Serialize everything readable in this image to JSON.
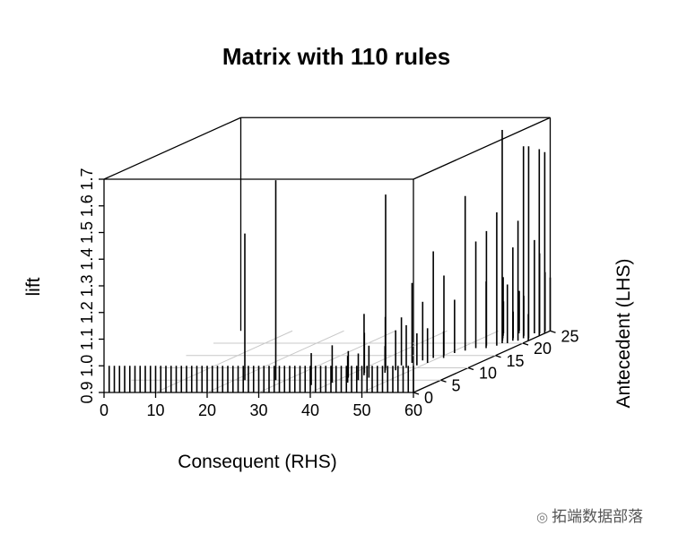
{
  "chart_data": {
    "type": "3d-bar",
    "title": "Matrix with 110 rules",
    "xlabel": "Consequent (RHS)",
    "ylabel": "Antecedent (LHS)",
    "zlabel": "lift",
    "xlim": [
      0,
      60
    ],
    "ylim": [
      0,
      25
    ],
    "zlim": [
      0.9,
      1.7
    ],
    "xticks": [
      "0",
      "10",
      "20",
      "30",
      "40",
      "50",
      "60"
    ],
    "yticks": [
      "0",
      "5",
      "10",
      "15",
      "20",
      "25"
    ],
    "zticks": [
      "0.9",
      "1.0",
      "1.1",
      "1.2",
      "1.3",
      "1.4",
      "1.5",
      "1.6",
      "1.7"
    ],
    "points_note_series": [
      {
        "x": 1,
        "y": 0,
        "z": 1.0
      },
      {
        "x": 2,
        "y": 0,
        "z": 1.0
      },
      {
        "x": 3,
        "y": 0,
        "z": 1.0
      },
      {
        "x": 4,
        "y": 0,
        "z": 1.0
      },
      {
        "x": 5,
        "y": 0,
        "z": 1.0
      },
      {
        "x": 6,
        "y": 0,
        "z": 1.0
      },
      {
        "x": 7,
        "y": 0,
        "z": 1.0
      },
      {
        "x": 8,
        "y": 0,
        "z": 1.0
      },
      {
        "x": 9,
        "y": 0,
        "z": 1.0
      },
      {
        "x": 10,
        "y": 0,
        "z": 1.0
      },
      {
        "x": 11,
        "y": 0,
        "z": 1.0
      },
      {
        "x": 12,
        "y": 0,
        "z": 1.0
      },
      {
        "x": 13,
        "y": 0,
        "z": 1.0
      },
      {
        "x": 14,
        "y": 0,
        "z": 1.0
      },
      {
        "x": 15,
        "y": 0,
        "z": 1.0
      },
      {
        "x": 16,
        "y": 0,
        "z": 1.0
      },
      {
        "x": 17,
        "y": 0,
        "z": 1.0
      },
      {
        "x": 18,
        "y": 0,
        "z": 1.0
      },
      {
        "x": 19,
        "y": 0,
        "z": 1.0
      },
      {
        "x": 20,
        "y": 0,
        "z": 1.0
      },
      {
        "x": 21,
        "y": 0,
        "z": 1.0
      },
      {
        "x": 22,
        "y": 0,
        "z": 1.0
      },
      {
        "x": 23,
        "y": 0,
        "z": 1.0
      },
      {
        "x": 24,
        "y": 0,
        "z": 1.0
      },
      {
        "x": 25,
        "y": 0,
        "z": 1.0
      },
      {
        "x": 26,
        "y": 0,
        "z": 1.0
      },
      {
        "x": 27,
        "y": 0,
        "z": 1.0
      },
      {
        "x": 28,
        "y": 0,
        "z": 1.0
      },
      {
        "x": 29,
        "y": 0,
        "z": 1.0
      },
      {
        "x": 30,
        "y": 0,
        "z": 1.0
      },
      {
        "x": 31,
        "y": 0,
        "z": 1.0
      },
      {
        "x": 32,
        "y": 0,
        "z": 1.0
      },
      {
        "x": 33,
        "y": 0,
        "z": 1.0
      },
      {
        "x": 34,
        "y": 0,
        "z": 1.0
      },
      {
        "x": 35,
        "y": 0,
        "z": 1.0
      },
      {
        "x": 36,
        "y": 0,
        "z": 1.0
      },
      {
        "x": 37,
        "y": 0,
        "z": 1.0
      },
      {
        "x": 38,
        "y": 0,
        "z": 1.0
      },
      {
        "x": 39,
        "y": 0,
        "z": 1.0
      },
      {
        "x": 40,
        "y": 0,
        "z": 1.0
      },
      {
        "x": 41,
        "y": 0,
        "z": 1.0
      },
      {
        "x": 42,
        "y": 0,
        "z": 1.0
      },
      {
        "x": 43,
        "y": 0,
        "z": 1.0
      },
      {
        "x": 44,
        "y": 0,
        "z": 1.0
      },
      {
        "x": 45,
        "y": 0,
        "z": 1.0
      },
      {
        "x": 46,
        "y": 0,
        "z": 1.0
      },
      {
        "x": 47,
        "y": 0,
        "z": 1.0
      },
      {
        "x": 48,
        "y": 0,
        "z": 1.0
      },
      {
        "x": 49,
        "y": 0,
        "z": 1.0
      },
      {
        "x": 50,
        "y": 0,
        "z": 1.0
      },
      {
        "x": 51,
        "y": 0,
        "z": 1.0
      },
      {
        "x": 52,
        "y": 0,
        "z": 1.0
      },
      {
        "x": 53,
        "y": 0,
        "z": 1.0
      },
      {
        "x": 54,
        "y": 0,
        "z": 1.0
      },
      {
        "x": 55,
        "y": 0,
        "z": 1.0
      },
      {
        "x": 56,
        "y": 0,
        "z": 1.0
      },
      {
        "x": 57,
        "y": 0,
        "z": 1.0
      },
      {
        "x": 58,
        "y": 0,
        "z": 1.0
      },
      {
        "x": 59,
        "y": 0,
        "z": 1.0
      },
      {
        "x": 60,
        "y": 0,
        "z": 1.0
      },
      {
        "x": 22,
        "y": 5,
        "z": 1.45
      },
      {
        "x": 28,
        "y": 5,
        "z": 1.65
      },
      {
        "x": 41,
        "y": 6,
        "z": 1.0
      },
      {
        "x": 42,
        "y": 8,
        "z": 1.05
      },
      {
        "x": 44,
        "y": 10,
        "z": 1.55
      },
      {
        "x": 45,
        "y": 9,
        "z": 1.1
      },
      {
        "x": 46,
        "y": 11,
        "z": 1.08
      },
      {
        "x": 47,
        "y": 12,
        "z": 1.2
      },
      {
        "x": 48,
        "y": 13,
        "z": 1.12
      },
      {
        "x": 49,
        "y": 14,
        "z": 1.3
      },
      {
        "x": 50,
        "y": 15,
        "z": 1.2
      },
      {
        "x": 51,
        "y": 16,
        "z": 1.1
      },
      {
        "x": 43,
        "y": 7,
        "z": 1.13
      },
      {
        "x": 47,
        "y": 9,
        "z": 1.05
      },
      {
        "x": 52,
        "y": 17,
        "z": 1.48
      },
      {
        "x": 53,
        "y": 18,
        "z": 1.3
      },
      {
        "x": 54,
        "y": 19,
        "z": 1.33
      },
      {
        "x": 55,
        "y": 18,
        "z": 1.15
      },
      {
        "x": 56,
        "y": 20,
        "z": 1.7
      },
      {
        "x": 57,
        "y": 21,
        "z": 1.25
      },
      {
        "x": 58,
        "y": 22,
        "z": 1.62
      },
      {
        "x": 59,
        "y": 22,
        "z": 1.62
      },
      {
        "x": 60,
        "y": 23,
        "z": 1.6
      },
      {
        "x": 60,
        "y": 24,
        "z": 1.58
      },
      {
        "x": 56,
        "y": 19,
        "z": 1.4
      },
      {
        "x": 57,
        "y": 20,
        "z": 1.12
      },
      {
        "x": 58,
        "y": 21,
        "z": 1.35
      },
      {
        "x": 59,
        "y": 24,
        "z": 1.2
      },
      {
        "x": 60,
        "y": 25,
        "z": 1.1
      },
      {
        "x": 55,
        "y": 21,
        "z": 1.05
      },
      {
        "x": 54,
        "y": 22,
        "z": 1.08
      },
      {
        "x": 53,
        "y": 23,
        "z": 1.12
      },
      {
        "x": 52,
        "y": 24,
        "z": 1.02
      },
      {
        "x": 51,
        "y": 14,
        "z": 1.0
      },
      {
        "x": 50,
        "y": 12,
        "z": 1.03
      },
      {
        "x": 49,
        "y": 11,
        "z": 1.02
      },
      {
        "x": 48,
        "y": 10,
        "z": 1.06
      },
      {
        "x": 58,
        "y": 24,
        "z": 1.25
      },
      {
        "x": 59,
        "y": 25,
        "z": 1.12
      },
      {
        "x": 46,
        "y": 8,
        "z": 1.0
      },
      {
        "x": 44,
        "y": 5,
        "z": 1.0
      },
      {
        "x": 43,
        "y": 4,
        "z": 1.0
      },
      {
        "x": 37,
        "y": 3,
        "z": 1.02
      },
      {
        "x": 40,
        "y": 4,
        "z": 1.04
      },
      {
        "x": 45,
        "y": 6,
        "z": 1.02
      },
      {
        "x": 60,
        "y": 21,
        "z": 1.0
      },
      {
        "x": 57,
        "y": 23,
        "z": 1.05
      },
      {
        "x": 56,
        "y": 22,
        "z": 1.0
      },
      {
        "x": 55,
        "y": 24,
        "z": 1.02
      },
      {
        "x": 54,
        "y": 25,
        "z": 1.05
      }
    ]
  },
  "watermark": {
    "icon": "wechat-icon",
    "text": "拓端数据部落"
  }
}
